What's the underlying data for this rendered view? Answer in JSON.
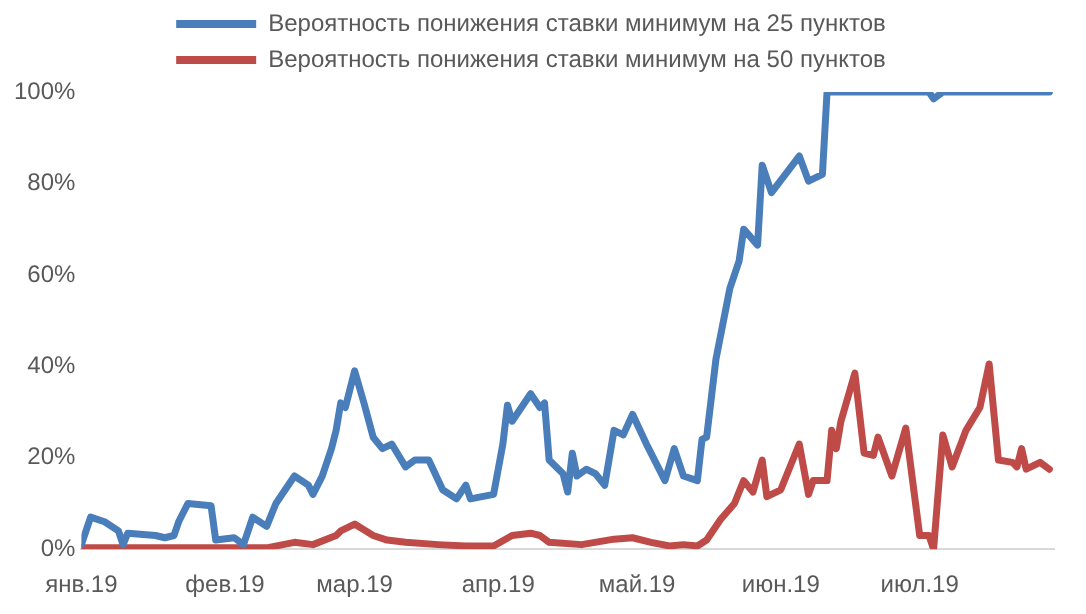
{
  "chart_data": {
    "type": "line",
    "xlim": [
      "2019-01-01",
      "2019-07-30"
    ],
    "xticks": [
      {
        "value": "2019-01-01",
        "label": "янв.19"
      },
      {
        "value": "2019-02-01",
        "label": "фев.19"
      },
      {
        "value": "2019-03-01",
        "label": "мар.19"
      },
      {
        "value": "2019-04-01",
        "label": "апр.19"
      },
      {
        "value": "2019-05-01",
        "label": "май.19"
      },
      {
        "value": "2019-06-01",
        "label": "июн.19"
      },
      {
        "value": "2019-07-01",
        "label": "июл.19"
      }
    ],
    "ylim": [
      0,
      100
    ],
    "yticks": [
      {
        "value": 0,
        "label": "0%"
      },
      {
        "value": 20,
        "label": "20%"
      },
      {
        "value": 40,
        "label": "40%"
      },
      {
        "value": 60,
        "label": "60%"
      },
      {
        "value": 80,
        "label": "80%"
      },
      {
        "value": 100,
        "label": "100%"
      }
    ],
    "grid": false,
    "legend": "top",
    "marker": "none",
    "line_style": "solid",
    "series": [
      {
        "name": "Вероятность понижения ставки минимум на 25 пунктов",
        "color": "#4a7ebb",
        "x": [
          "2019-01-01",
          "2019-01-03",
          "2019-01-06",
          "2019-01-09",
          "2019-01-10",
          "2019-01-11",
          "2019-01-17",
          "2019-01-19",
          "2019-01-21",
          "2019-01-22",
          "2019-01-24",
          "2019-01-29",
          "2019-01-30",
          "2019-02-03",
          "2019-02-05",
          "2019-02-07",
          "2019-02-10",
          "2019-02-12",
          "2019-02-14",
          "2019-02-16",
          "2019-02-19",
          "2019-02-20",
          "2019-02-22",
          "2019-02-24",
          "2019-02-25",
          "2019-02-26",
          "2019-02-27",
          "2019-03-01",
          "2019-03-03",
          "2019-03-05",
          "2019-03-07",
          "2019-03-09",
          "2019-03-12",
          "2019-03-14",
          "2019-03-17",
          "2019-03-20",
          "2019-03-23",
          "2019-03-25",
          "2019-03-26",
          "2019-03-31",
          "2019-04-02",
          "2019-04-03",
          "2019-04-04",
          "2019-04-08",
          "2019-04-10",
          "2019-04-11",
          "2019-04-12",
          "2019-04-15",
          "2019-04-16",
          "2019-04-17",
          "2019-04-18",
          "2019-04-20",
          "2019-04-22",
          "2019-04-24",
          "2019-04-26",
          "2019-04-28",
          "2019-04-30",
          "2019-05-03",
          "2019-05-07",
          "2019-05-09",
          "2019-05-11",
          "2019-05-14",
          "2019-05-15",
          "2019-05-16",
          "2019-05-18",
          "2019-05-21",
          "2019-05-23",
          "2019-05-24",
          "2019-05-27",
          "2019-05-28",
          "2019-05-30",
          "2019-06-05",
          "2019-06-07",
          "2019-06-10",
          "2019-06-11",
          "2019-07-03",
          "2019-07-04",
          "2019-07-06",
          "2019-07-29"
        ],
        "values": [
          1,
          7,
          6,
          4,
          1,
          3.5,
          3,
          2.5,
          3,
          6,
          10,
          9.5,
          2,
          2.5,
          1,
          7,
          5,
          10,
          13,
          16,
          14,
          12,
          16,
          22,
          26,
          32,
          31,
          39,
          32,
          24.5,
          22,
          23,
          18,
          19.5,
          19.5,
          13,
          11,
          14,
          11,
          12,
          23,
          31.5,
          28,
          34,
          31,
          32,
          19.5,
          16.5,
          12.5,
          21,
          16,
          17.5,
          16.5,
          14,
          26,
          25,
          29.5,
          23,
          15,
          22,
          16,
          15,
          24,
          24.5,
          41.5,
          57,
          63,
          70,
          66.5,
          84,
          78,
          86,
          80.5,
          82,
          100,
          100,
          98.5,
          100,
          100
        ]
      },
      {
        "name": "Вероятность понижения ставки минимум на 50 пунктов",
        "color": "#be4b48",
        "x": [
          "2019-01-01",
          "2019-02-10",
          "2019-02-16",
          "2019-02-20",
          "2019-02-25",
          "2019-02-26",
          "2019-03-01",
          "2019-03-05",
          "2019-03-08",
          "2019-03-12",
          "2019-03-19",
          "2019-03-25",
          "2019-03-31",
          "2019-04-04",
          "2019-04-08",
          "2019-04-10",
          "2019-04-12",
          "2019-04-19",
          "2019-04-26",
          "2019-04-30",
          "2019-05-04",
          "2019-05-08",
          "2019-05-11",
          "2019-05-14",
          "2019-05-16",
          "2019-05-19",
          "2019-05-22",
          "2019-05-24",
          "2019-05-26",
          "2019-05-28",
          "2019-05-29",
          "2019-06-01",
          "2019-06-05",
          "2019-06-07",
          "2019-06-08",
          "2019-06-11",
          "2019-06-12",
          "2019-06-13",
          "2019-06-14",
          "2019-06-17",
          "2019-06-19",
          "2019-06-21",
          "2019-06-22",
          "2019-06-25",
          "2019-06-28",
          "2019-07-01",
          "2019-07-03",
          "2019-07-04",
          "2019-07-06",
          "2019-07-08",
          "2019-07-11",
          "2019-07-14",
          "2019-07-16",
          "2019-07-18",
          "2019-07-21",
          "2019-07-22",
          "2019-07-23",
          "2019-07-24",
          "2019-07-27",
          "2019-07-29"
        ],
        "values": [
          0.3,
          0.3,
          1.5,
          1,
          3,
          4,
          5.5,
          3,
          2,
          1.5,
          1,
          0.7,
          0.7,
          3,
          3.5,
          3,
          1.5,
          1,
          2.2,
          2.5,
          1.5,
          0.7,
          1,
          0.7,
          2,
          6.5,
          10,
          15,
          12.5,
          19.5,
          11.5,
          13,
          23,
          12,
          15,
          15,
          26,
          22,
          28,
          38.5,
          21,
          20.5,
          24.5,
          16,
          26.5,
          3,
          3,
          0,
          25,
          18,
          26,
          31,
          40.5,
          19.5,
          19,
          18,
          22,
          17.5,
          19,
          17.5
        ]
      }
    ]
  }
}
